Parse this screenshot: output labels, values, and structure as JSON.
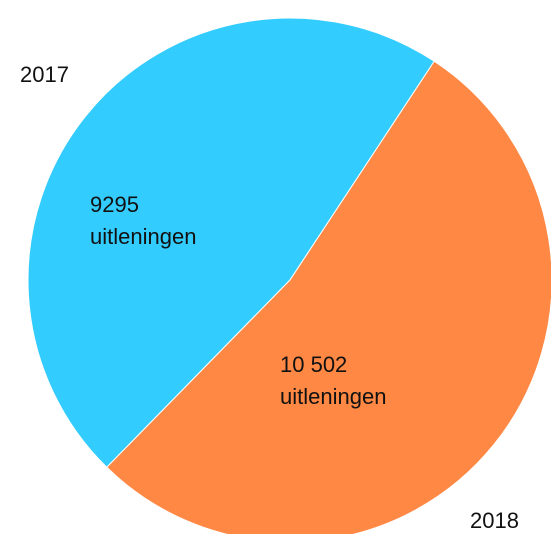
{
  "chart_data": {
    "type": "pie",
    "categories": [
      "2017",
      "2018"
    ],
    "values": [
      9295,
      10502
    ],
    "value_labels": [
      "9295 uitleningen",
      "10 502 uitleningen"
    ],
    "colors": [
      "#33ccff",
      "#ff8844"
    ]
  }
}
